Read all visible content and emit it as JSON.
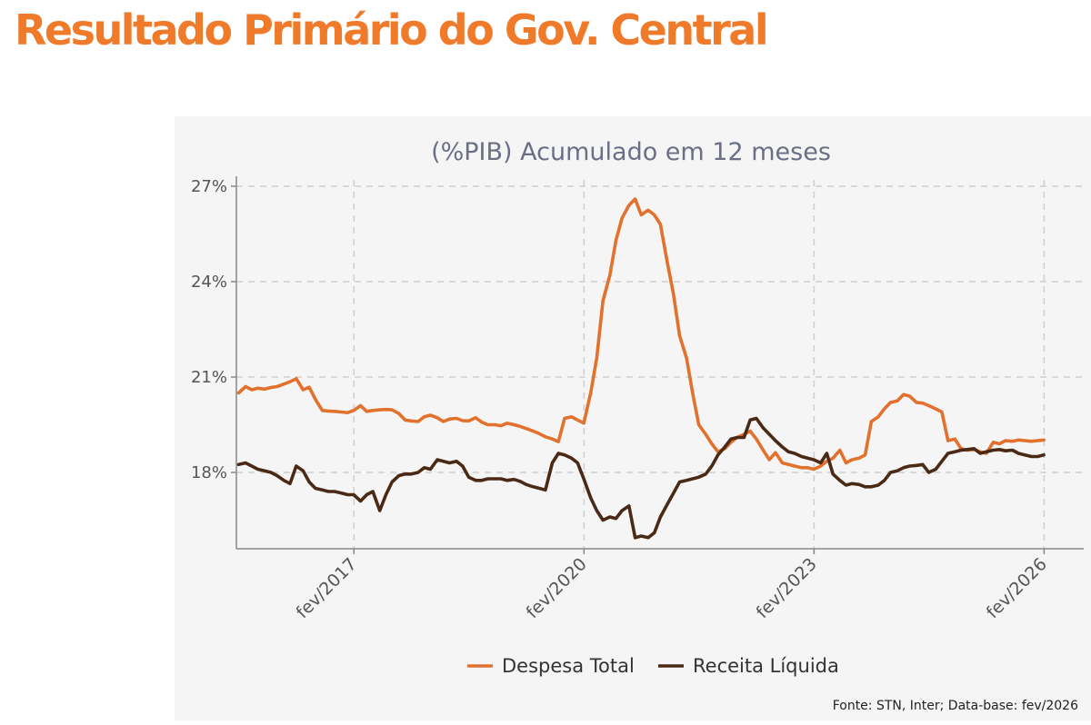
{
  "header": {
    "title": "Resultado Primário do Gov. Central"
  },
  "source": "Fonte: STN, Inter; Data-base: fev/2026",
  "chart_data": {
    "type": "line",
    "subtitle": "(%PIB) Acumulado em 12 meses",
    "yticks": [
      "27%",
      "24%",
      "21%",
      "18%"
    ],
    "ytick_values": [
      27,
      24,
      21,
      18
    ],
    "ylim": [
      15.6,
      27.2
    ],
    "xticks": [
      "fev/2017",
      "fev/2020",
      "fev/2023",
      "fev/2026"
    ],
    "xtick_values": [
      2017.083,
      2020.083,
      2023.083,
      2026.083
    ],
    "xlim": [
      2015.55,
      2026.6
    ],
    "grid": true,
    "legend_position": "bottom",
    "series": [
      {
        "name": "Despesa Total",
        "color": "#E2712E",
        "points": [
          [
            2015.58,
            20.5
          ],
          [
            2015.67,
            20.7
          ],
          [
            2015.75,
            20.6
          ],
          [
            2015.83,
            20.65
          ],
          [
            2015.92,
            20.62
          ],
          [
            2016.0,
            20.67
          ],
          [
            2016.08,
            20.7
          ],
          [
            2016.17,
            20.78
          ],
          [
            2016.25,
            20.85
          ],
          [
            2016.33,
            20.95
          ],
          [
            2016.42,
            20.6
          ],
          [
            2016.5,
            20.68
          ],
          [
            2016.58,
            20.3
          ],
          [
            2016.67,
            19.95
          ],
          [
            2016.75,
            19.93
          ],
          [
            2016.83,
            19.92
          ],
          [
            2016.92,
            19.9
          ],
          [
            2017.0,
            19.88
          ],
          [
            2017.08,
            19.95
          ],
          [
            2017.17,
            20.1
          ],
          [
            2017.25,
            19.92
          ],
          [
            2017.33,
            19.95
          ],
          [
            2017.42,
            19.97
          ],
          [
            2017.5,
            19.98
          ],
          [
            2017.58,
            19.97
          ],
          [
            2017.67,
            19.85
          ],
          [
            2017.75,
            19.65
          ],
          [
            2017.83,
            19.62
          ],
          [
            2017.92,
            19.6
          ],
          [
            2018.0,
            19.75
          ],
          [
            2018.08,
            19.8
          ],
          [
            2018.17,
            19.72
          ],
          [
            2018.25,
            19.6
          ],
          [
            2018.33,
            19.68
          ],
          [
            2018.42,
            19.7
          ],
          [
            2018.5,
            19.63
          ],
          [
            2018.58,
            19.62
          ],
          [
            2018.67,
            19.72
          ],
          [
            2018.75,
            19.58
          ],
          [
            2018.83,
            19.5
          ],
          [
            2018.92,
            19.5
          ],
          [
            2019.0,
            19.47
          ],
          [
            2019.08,
            19.55
          ],
          [
            2019.17,
            19.5
          ],
          [
            2019.25,
            19.45
          ],
          [
            2019.33,
            19.38
          ],
          [
            2019.42,
            19.3
          ],
          [
            2019.5,
            19.22
          ],
          [
            2019.58,
            19.12
          ],
          [
            2019.67,
            19.05
          ],
          [
            2019.75,
            18.97
          ],
          [
            2019.83,
            19.7
          ],
          [
            2019.92,
            19.75
          ],
          [
            2020.0,
            19.65
          ],
          [
            2020.08,
            19.55
          ],
          [
            2020.17,
            20.5
          ],
          [
            2020.25,
            21.6
          ],
          [
            2020.33,
            23.4
          ],
          [
            2020.42,
            24.2
          ],
          [
            2020.5,
            25.3
          ],
          [
            2020.58,
            26.0
          ],
          [
            2020.67,
            26.4
          ],
          [
            2020.75,
            26.6
          ],
          [
            2020.83,
            26.1
          ],
          [
            2020.92,
            26.25
          ],
          [
            2021.0,
            26.1
          ],
          [
            2021.08,
            25.8
          ],
          [
            2021.17,
            24.6
          ],
          [
            2021.25,
            23.6
          ],
          [
            2021.33,
            22.3
          ],
          [
            2021.42,
            21.6
          ],
          [
            2021.5,
            20.5
          ],
          [
            2021.58,
            19.5
          ],
          [
            2021.67,
            19.2
          ],
          [
            2021.75,
            18.9
          ],
          [
            2021.83,
            18.65
          ],
          [
            2021.92,
            18.75
          ],
          [
            2022.0,
            18.95
          ],
          [
            2022.08,
            19.1
          ],
          [
            2022.17,
            19.2
          ],
          [
            2022.25,
            19.3
          ],
          [
            2022.33,
            19.05
          ],
          [
            2022.42,
            18.7
          ],
          [
            2022.5,
            18.4
          ],
          [
            2022.58,
            18.62
          ],
          [
            2022.67,
            18.3
          ],
          [
            2022.75,
            18.25
          ],
          [
            2022.83,
            18.2
          ],
          [
            2022.92,
            18.15
          ],
          [
            2023.0,
            18.15
          ],
          [
            2023.08,
            18.1
          ],
          [
            2023.17,
            18.2
          ],
          [
            2023.25,
            18.35
          ],
          [
            2023.33,
            18.45
          ],
          [
            2023.42,
            18.7
          ],
          [
            2023.5,
            18.3
          ],
          [
            2023.58,
            18.4
          ],
          [
            2023.67,
            18.45
          ],
          [
            2023.75,
            18.55
          ],
          [
            2023.83,
            19.6
          ],
          [
            2023.92,
            19.75
          ],
          [
            2024.0,
            20.0
          ],
          [
            2024.08,
            20.2
          ],
          [
            2024.17,
            20.25
          ],
          [
            2024.25,
            20.45
          ],
          [
            2024.33,
            20.4
          ],
          [
            2024.42,
            20.2
          ],
          [
            2024.5,
            20.18
          ],
          [
            2024.58,
            20.1
          ],
          [
            2024.67,
            20.0
          ],
          [
            2024.75,
            19.9
          ],
          [
            2024.83,
            19.0
          ],
          [
            2024.92,
            19.05
          ],
          [
            2025.0,
            18.75
          ],
          [
            2025.08,
            18.7
          ],
          [
            2025.17,
            18.72
          ],
          [
            2025.25,
            18.65
          ],
          [
            2025.33,
            18.6
          ],
          [
            2025.42,
            18.95
          ],
          [
            2025.5,
            18.9
          ],
          [
            2025.58,
            19.0
          ],
          [
            2025.67,
            18.98
          ],
          [
            2025.75,
            19.02
          ],
          [
            2025.83,
            19.0
          ],
          [
            2025.92,
            18.98
          ],
          [
            2026.0,
            19.0
          ],
          [
            2026.08,
            19.02
          ]
        ]
      },
      {
        "name": "Receita Líquida",
        "color": "#4A2A15",
        "points": [
          [
            2015.58,
            18.25
          ],
          [
            2015.67,
            18.3
          ],
          [
            2015.75,
            18.2
          ],
          [
            2015.83,
            18.1
          ],
          [
            2015.92,
            18.05
          ],
          [
            2016.0,
            18.0
          ],
          [
            2016.08,
            17.9
          ],
          [
            2016.17,
            17.75
          ],
          [
            2016.25,
            17.65
          ],
          [
            2016.33,
            18.2
          ],
          [
            2016.42,
            18.05
          ],
          [
            2016.5,
            17.7
          ],
          [
            2016.58,
            17.5
          ],
          [
            2016.67,
            17.45
          ],
          [
            2016.75,
            17.4
          ],
          [
            2016.83,
            17.4
          ],
          [
            2016.92,
            17.35
          ],
          [
            2017.0,
            17.3
          ],
          [
            2017.08,
            17.3
          ],
          [
            2017.17,
            17.1
          ],
          [
            2017.25,
            17.3
          ],
          [
            2017.33,
            17.4
          ],
          [
            2017.42,
            16.8
          ],
          [
            2017.5,
            17.3
          ],
          [
            2017.58,
            17.7
          ],
          [
            2017.67,
            17.9
          ],
          [
            2017.75,
            17.95
          ],
          [
            2017.83,
            17.95
          ],
          [
            2017.92,
            18.0
          ],
          [
            2018.0,
            18.15
          ],
          [
            2018.08,
            18.1
          ],
          [
            2018.17,
            18.4
          ],
          [
            2018.25,
            18.35
          ],
          [
            2018.33,
            18.3
          ],
          [
            2018.42,
            18.35
          ],
          [
            2018.5,
            18.2
          ],
          [
            2018.58,
            17.85
          ],
          [
            2018.67,
            17.75
          ],
          [
            2018.75,
            17.75
          ],
          [
            2018.83,
            17.8
          ],
          [
            2018.92,
            17.8
          ],
          [
            2019.0,
            17.8
          ],
          [
            2019.08,
            17.75
          ],
          [
            2019.17,
            17.78
          ],
          [
            2019.25,
            17.72
          ],
          [
            2019.33,
            17.62
          ],
          [
            2019.42,
            17.55
          ],
          [
            2019.5,
            17.5
          ],
          [
            2019.58,
            17.45
          ],
          [
            2019.67,
            18.3
          ],
          [
            2019.75,
            18.6
          ],
          [
            2019.83,
            18.55
          ],
          [
            2019.92,
            18.45
          ],
          [
            2020.0,
            18.3
          ],
          [
            2020.08,
            17.8
          ],
          [
            2020.17,
            17.2
          ],
          [
            2020.25,
            16.8
          ],
          [
            2020.33,
            16.5
          ],
          [
            2020.42,
            16.6
          ],
          [
            2020.5,
            16.55
          ],
          [
            2020.58,
            16.8
          ],
          [
            2020.67,
            16.95
          ],
          [
            2020.75,
            15.95
          ],
          [
            2020.83,
            16.0
          ],
          [
            2020.92,
            15.95
          ],
          [
            2021.0,
            16.1
          ],
          [
            2021.08,
            16.6
          ],
          [
            2021.17,
            17.0
          ],
          [
            2021.25,
            17.35
          ],
          [
            2021.33,
            17.7
          ],
          [
            2021.42,
            17.75
          ],
          [
            2021.5,
            17.8
          ],
          [
            2021.58,
            17.85
          ],
          [
            2021.67,
            17.95
          ],
          [
            2021.75,
            18.2
          ],
          [
            2021.83,
            18.55
          ],
          [
            2021.92,
            18.8
          ],
          [
            2022.0,
            19.05
          ],
          [
            2022.08,
            19.1
          ],
          [
            2022.17,
            19.1
          ],
          [
            2022.25,
            19.65
          ],
          [
            2022.33,
            19.7
          ],
          [
            2022.42,
            19.4
          ],
          [
            2022.5,
            19.2
          ],
          [
            2022.58,
            19.0
          ],
          [
            2022.67,
            18.8
          ],
          [
            2022.75,
            18.65
          ],
          [
            2022.83,
            18.6
          ],
          [
            2022.92,
            18.5
          ],
          [
            2023.0,
            18.45
          ],
          [
            2023.08,
            18.4
          ],
          [
            2023.17,
            18.3
          ],
          [
            2023.25,
            18.6
          ],
          [
            2023.33,
            17.95
          ],
          [
            2023.42,
            17.75
          ],
          [
            2023.5,
            17.6
          ],
          [
            2023.58,
            17.65
          ],
          [
            2023.67,
            17.62
          ],
          [
            2023.75,
            17.55
          ],
          [
            2023.83,
            17.55
          ],
          [
            2023.92,
            17.6
          ],
          [
            2024.0,
            17.75
          ],
          [
            2024.08,
            18.0
          ],
          [
            2024.17,
            18.05
          ],
          [
            2024.25,
            18.15
          ],
          [
            2024.33,
            18.2
          ],
          [
            2024.42,
            18.22
          ],
          [
            2024.5,
            18.25
          ],
          [
            2024.58,
            18.0
          ],
          [
            2024.67,
            18.1
          ],
          [
            2024.75,
            18.35
          ],
          [
            2024.83,
            18.6
          ],
          [
            2024.92,
            18.65
          ],
          [
            2025.0,
            18.7
          ],
          [
            2025.08,
            18.72
          ],
          [
            2025.17,
            18.75
          ],
          [
            2025.25,
            18.6
          ],
          [
            2025.33,
            18.65
          ],
          [
            2025.42,
            18.7
          ],
          [
            2025.5,
            18.72
          ],
          [
            2025.58,
            18.68
          ],
          [
            2025.67,
            18.7
          ],
          [
            2025.75,
            18.6
          ],
          [
            2025.83,
            18.55
          ],
          [
            2025.92,
            18.5
          ],
          [
            2026.0,
            18.5
          ],
          [
            2026.08,
            18.55
          ]
        ]
      }
    ]
  }
}
